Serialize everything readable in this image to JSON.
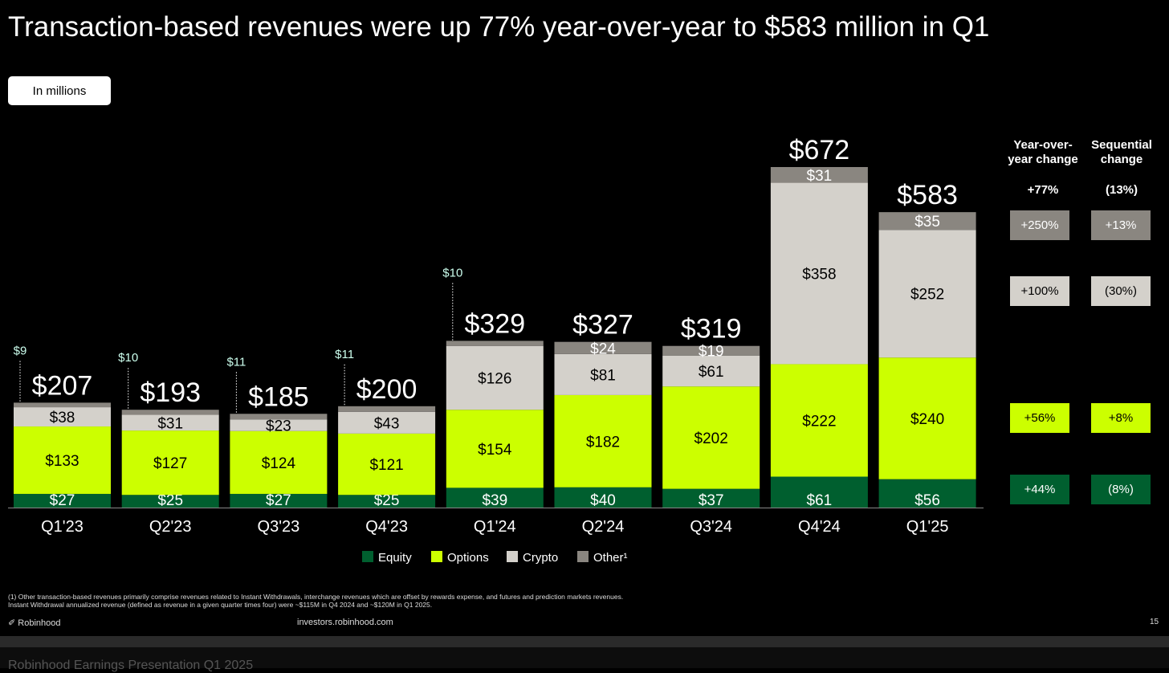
{
  "title": "Transaction-based revenues were up 77% year-over-year to $583 million in Q1",
  "unit_label": "In millions",
  "chart_data": {
    "type": "bar",
    "stacked": true,
    "categories": [
      "Q1'23",
      "Q2'23",
      "Q3'23",
      "Q4'23",
      "Q1'24",
      "Q2'24",
      "Q3'24",
      "Q4'24",
      "Q1'25"
    ],
    "series": [
      {
        "name": "Equity",
        "color": "#005f2f",
        "values": [
          27,
          25,
          27,
          25,
          39,
          40,
          37,
          61,
          56
        ]
      },
      {
        "name": "Options",
        "color": "#ccff00",
        "values": [
          133,
          127,
          124,
          121,
          154,
          182,
          202,
          222,
          240
        ]
      },
      {
        "name": "Crypto",
        "color": "#d4d1cb",
        "values": [
          38,
          31,
          23,
          43,
          126,
          81,
          61,
          358,
          252
        ]
      },
      {
        "name": "Other¹",
        "color": "#8a8680",
        "values": [
          9,
          10,
          11,
          11,
          10,
          24,
          19,
          31,
          35
        ]
      }
    ],
    "totals": [
      207,
      193,
      185,
      200,
      329,
      327,
      319,
      672,
      583
    ],
    "legend": "bottom",
    "ylim": [
      0,
      672
    ]
  },
  "changes": {
    "yoy_header": "Year-over-year change",
    "seq_header": "Sequential change",
    "yoy_total": "+77%",
    "seq_total": "(13%)",
    "rows": [
      {
        "series": "Other",
        "yoy": "+250%",
        "seq": "+13%",
        "bg": "#8a8680",
        "fg": "#fff"
      },
      {
        "series": "Crypto",
        "yoy": "+100%",
        "seq": "(30%)",
        "bg": "#d4d1cb",
        "fg": "#000"
      },
      {
        "series": "Options",
        "yoy": "+56%",
        "seq": "+8%",
        "bg": "#ccff00",
        "fg": "#000"
      },
      {
        "series": "Equity",
        "yoy": "+44%",
        "seq": "(8%)",
        "bg": "#005f2f",
        "fg": "#fff"
      }
    ]
  },
  "footnote": "(1) Other transaction-based revenues primarily comprise revenues related to Instant Withdrawals, interchange revenues which are offset by rewards expense, and futures and prediction markets revenues. Instant Withdrawal annualized revenue (defined as revenue in a given quarter times four) were ~$115M in Q4 2024 and ~$120M in Q1 2025.",
  "logo": "Robinhood",
  "url": "investors.robinhood.com",
  "page": "15",
  "presentation": "Robinhood Earnings Presentation Q1 2025"
}
